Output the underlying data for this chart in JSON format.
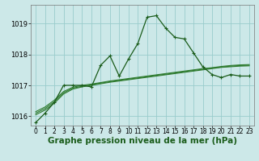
{
  "background_color": "#cce8e8",
  "grid_color": "#99cccc",
  "line_color_main": "#1a5c1a",
  "line_color_smooth": "#2d7a2d",
  "xlabel": "Graphe pression niveau de la mer (hPa)",
  "xlabel_fontsize": 7.5,
  "ylim": [
    1015.7,
    1019.6
  ],
  "xlim": [
    -0.5,
    23.5
  ],
  "yticks": [
    1016,
    1017,
    1018,
    1019
  ],
  "xticks": [
    0,
    1,
    2,
    3,
    4,
    5,
    6,
    7,
    8,
    9,
    10,
    11,
    12,
    13,
    14,
    15,
    16,
    17,
    18,
    19,
    20,
    21,
    22,
    23
  ],
  "series1": {
    "x": [
      0,
      1,
      2,
      3,
      4,
      5,
      6,
      7,
      8,
      9,
      10,
      11,
      12,
      13,
      14,
      15,
      16,
      17,
      18,
      19,
      20,
      21,
      22,
      23
    ],
    "y": [
      1015.8,
      1016.1,
      1016.45,
      1017.0,
      1017.0,
      1017.0,
      1016.95,
      1017.65,
      1017.95,
      1017.3,
      1017.85,
      1018.35,
      1019.2,
      1019.25,
      1018.85,
      1018.55,
      1018.5,
      1018.05,
      1017.6,
      1017.35,
      1017.25,
      1017.35,
      1017.3,
      1017.3
    ]
  },
  "series_smooth1": {
    "x": [
      0,
      1,
      2,
      3,
      4,
      5,
      6,
      7,
      8,
      9,
      10,
      11,
      12,
      13,
      14,
      15,
      16,
      17,
      18,
      19,
      20,
      21,
      22,
      23
    ],
    "y": [
      1016.05,
      1016.2,
      1016.42,
      1016.72,
      1016.88,
      1016.95,
      1017.0,
      1017.05,
      1017.1,
      1017.14,
      1017.18,
      1017.22,
      1017.26,
      1017.3,
      1017.34,
      1017.38,
      1017.42,
      1017.46,
      1017.5,
      1017.54,
      1017.58,
      1017.6,
      1017.62,
      1017.63
    ]
  },
  "series_smooth2": {
    "x": [
      0,
      1,
      2,
      3,
      4,
      5,
      6,
      7,
      8,
      9,
      10,
      11,
      12,
      13,
      14,
      15,
      16,
      17,
      18,
      19,
      20,
      21,
      22,
      23
    ],
    "y": [
      1016.1,
      1016.25,
      1016.47,
      1016.76,
      1016.91,
      1016.97,
      1017.02,
      1017.07,
      1017.12,
      1017.16,
      1017.2,
      1017.24,
      1017.28,
      1017.32,
      1017.36,
      1017.4,
      1017.44,
      1017.48,
      1017.52,
      1017.56,
      1017.59,
      1017.62,
      1017.64,
      1017.65
    ]
  },
  "series_smooth3": {
    "x": [
      0,
      1,
      2,
      3,
      4,
      5,
      6,
      7,
      8,
      9,
      10,
      11,
      12,
      13,
      14,
      15,
      16,
      17,
      18,
      19,
      20,
      21,
      22,
      23
    ],
    "y": [
      1016.15,
      1016.3,
      1016.52,
      1016.8,
      1016.94,
      1017.0,
      1017.04,
      1017.09,
      1017.14,
      1017.18,
      1017.22,
      1017.26,
      1017.3,
      1017.34,
      1017.38,
      1017.42,
      1017.46,
      1017.5,
      1017.54,
      1017.57,
      1017.61,
      1017.64,
      1017.66,
      1017.67
    ]
  }
}
